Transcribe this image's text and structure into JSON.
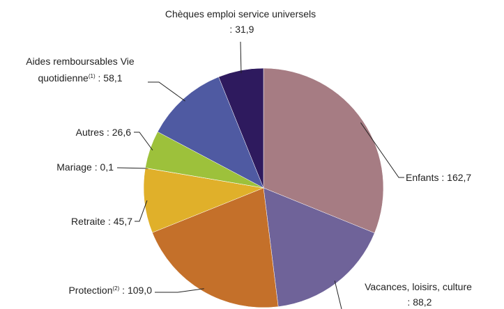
{
  "chart_data": {
    "type": "pie",
    "categories": [
      "Enfants",
      "Vacances, loisirs, culture",
      "Protection",
      "Retraite",
      "Mariage",
      "Autres",
      "Aides remboursables Vie quotidienne",
      "Chèques emploi service universels"
    ],
    "notes": [
      null,
      null,
      "(2)",
      null,
      null,
      null,
      "(1)",
      null
    ],
    "label_separator": " : ",
    "values": [
      162.7,
      88.2,
      109.0,
      45.7,
      0.1,
      26.6,
      58.1,
      31.9
    ],
    "value_labels": [
      "162,7",
      "88,2",
      "109,0",
      "45,7",
      "0,1",
      "26,6",
      "58,1",
      "31,9"
    ],
    "colors": [
      "#a67c83",
      "#6f6399",
      "#c4702a",
      "#e0b02a",
      "#d9a62a",
      "#9dc13b",
      "#4f5aa2",
      "#2e1a5e"
    ]
  }
}
